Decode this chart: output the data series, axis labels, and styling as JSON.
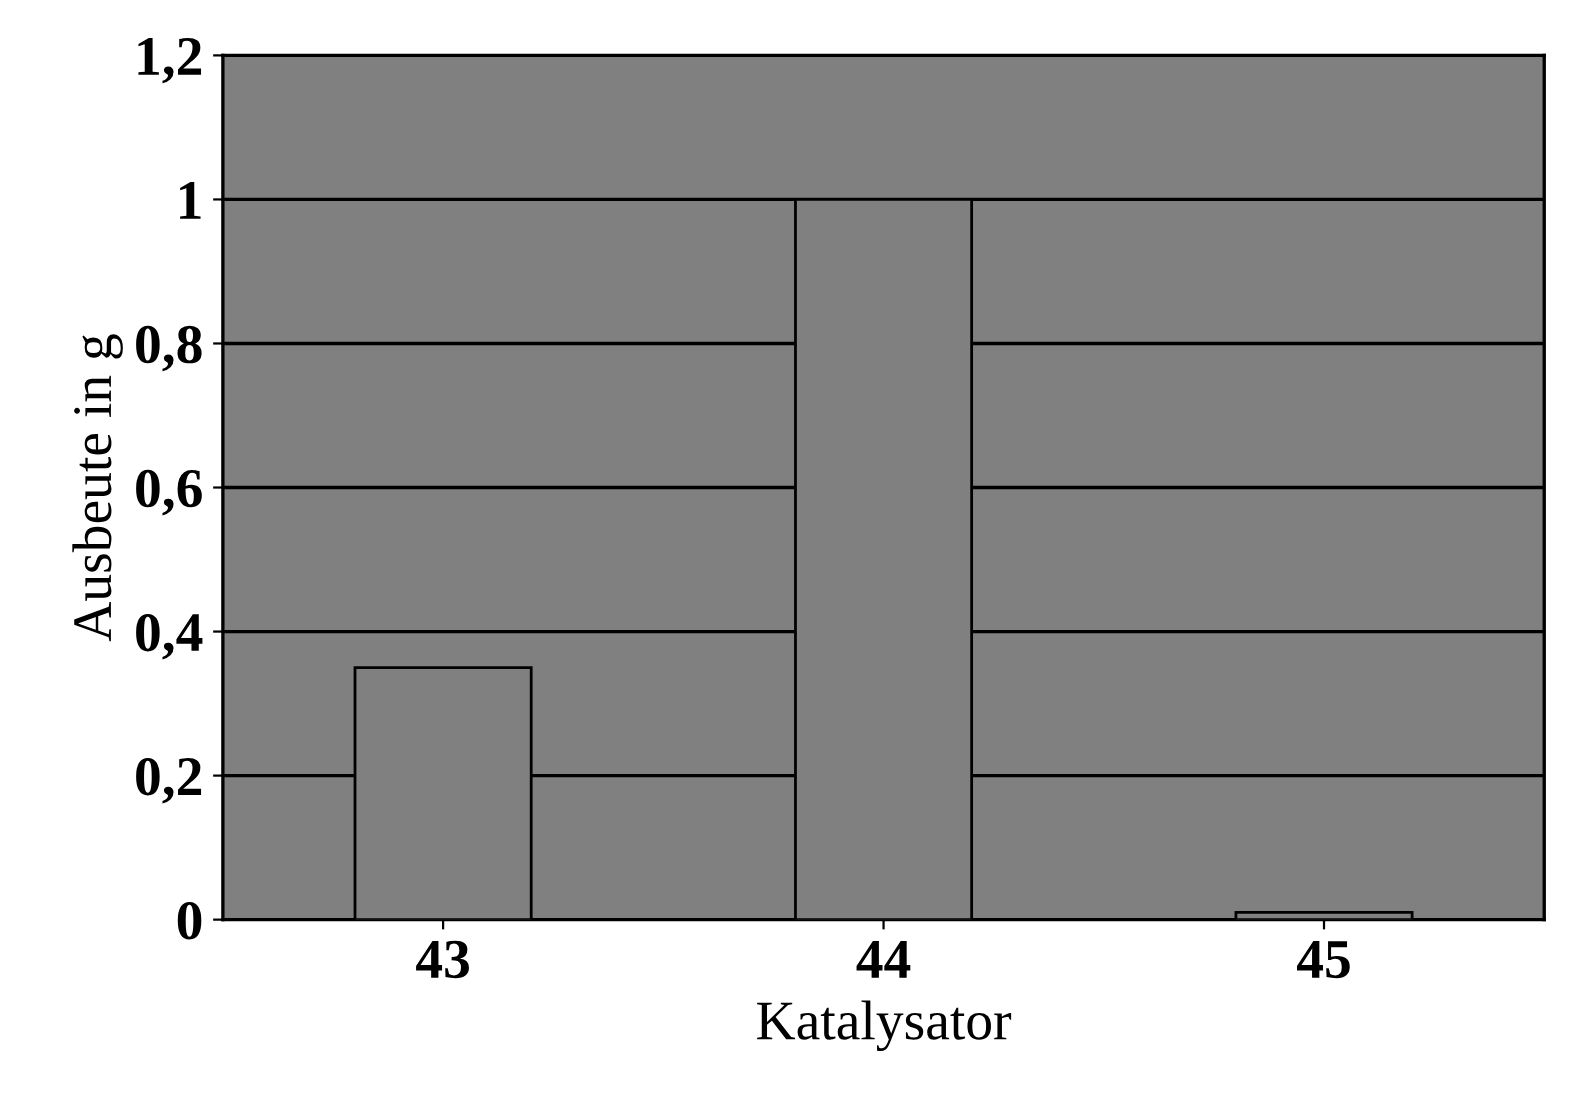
{
  "chart_data": {
    "type": "bar",
    "xlabel": "Katalysator",
    "ylabel": "Ausbeute in g",
    "categories": [
      "43",
      "44",
      "45"
    ],
    "values": [
      0.35,
      1.0,
      0.01
    ],
    "color": "#808080",
    "ylim": [
      0,
      1.2
    ],
    "yticks": [
      0,
      {
        "value": 0.2,
        "label": "0,2"
      },
      {
        "value": 0.4,
        "label": "0,4"
      },
      {
        "value": 0.6,
        "label": "0,6"
      },
      {
        "value": 0.8,
        "label": "0,8"
      },
      1,
      {
        "value": 1.2,
        "label": "1,2"
      }
    ],
    "grid": "y"
  }
}
